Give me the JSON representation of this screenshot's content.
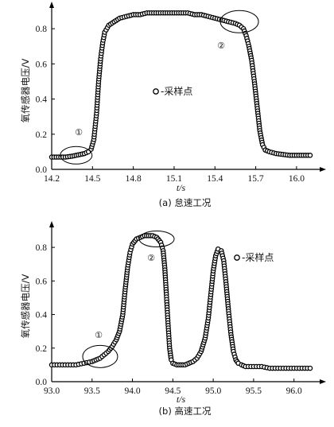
{
  "chart_data": [
    {
      "type": "scatter",
      "caption": "(a) 怠速工况",
      "xlabel": "t/s",
      "ylabel": "氧传感器电压/V",
      "xlim": [
        14.2,
        16.1
      ],
      "ylim": [
        0,
        0.9
      ],
      "xticks": [
        "14.2",
        "14.5",
        "14.8",
        "15.1",
        "15.4",
        "15.7",
        "16.0"
      ],
      "yticks": [
        "0.0",
        "0.2",
        "0.4",
        "0.6",
        "0.8"
      ],
      "legend_text": "-采样点",
      "legend_placement": "center",
      "annotations": [
        {
          "label": "①",
          "x": 14.38,
          "y": 0.08
        },
        {
          "label": "②",
          "x": 15.58,
          "y": 0.84
        }
      ],
      "series": [
        {
          "x": [
            14.2,
            14.25,
            14.3,
            14.35,
            14.38,
            14.41,
            14.44,
            14.47,
            14.49,
            14.51,
            14.53,
            14.545,
            14.56,
            14.575,
            14.59,
            14.62,
            14.66,
            14.7,
            14.75,
            14.8,
            14.85,
            14.9,
            14.95,
            15.0,
            15.05,
            15.1,
            15.15,
            15.2,
            15.25,
            15.3,
            15.35,
            15.4,
            15.45,
            15.5,
            15.55,
            15.58,
            15.61,
            15.63,
            15.65,
            15.67,
            15.69,
            15.71,
            15.73,
            15.75,
            15.77,
            15.8,
            15.85,
            15.9,
            15.95,
            16.0,
            16.05,
            16.1
          ],
          "y": [
            0.07,
            0.07,
            0.07,
            0.075,
            0.08,
            0.085,
            0.09,
            0.1,
            0.115,
            0.17,
            0.32,
            0.5,
            0.63,
            0.72,
            0.78,
            0.82,
            0.84,
            0.86,
            0.87,
            0.88,
            0.88,
            0.89,
            0.89,
            0.89,
            0.89,
            0.89,
            0.89,
            0.89,
            0.88,
            0.88,
            0.87,
            0.86,
            0.85,
            0.84,
            0.83,
            0.82,
            0.8,
            0.76,
            0.7,
            0.62,
            0.5,
            0.36,
            0.22,
            0.14,
            0.11,
            0.1,
            0.09,
            0.085,
            0.08,
            0.08,
            0.08,
            0.08
          ]
        }
      ]
    },
    {
      "type": "scatter",
      "caption": "(b) 高速工况",
      "xlabel": "t/s",
      "ylabel": "氧传感器电压/V",
      "xlim": [
        93.0,
        96.2
      ],
      "ylim": [
        0,
        0.9
      ],
      "xticks": [
        "93.0",
        "93.5",
        "94.0",
        "94.5",
        "95.0",
        "95.5",
        "96.0"
      ],
      "yticks": [
        "0.0",
        "0.2",
        "0.4",
        "0.6",
        "0.8"
      ],
      "legend_text": "-采样点",
      "legend_placement": "top-right",
      "annotations": [
        {
          "label": "①",
          "x": 93.6,
          "y": 0.15
        },
        {
          "label": "②",
          "x": 94.3,
          "y": 0.85
        }
      ],
      "series": [
        {
          "x": [
            93.0,
            93.1,
            93.2,
            93.3,
            93.4,
            93.5,
            93.55,
            93.6,
            93.65,
            93.7,
            93.75,
            93.8,
            93.84,
            93.88,
            93.91,
            93.94,
            93.97,
            94.0,
            94.05,
            94.1,
            94.15,
            94.2,
            94.25,
            94.3,
            94.35,
            94.38,
            94.4,
            94.42,
            94.44,
            94.46,
            94.48,
            94.5,
            94.55,
            94.6,
            94.65,
            94.7,
            94.75,
            94.8,
            94.85,
            94.9,
            94.94,
            94.97,
            95.0,
            95.03,
            95.06,
            95.1,
            95.13,
            95.16,
            95.19,
            95.22,
            95.25,
            95.28,
            95.31,
            95.35,
            95.4,
            95.5,
            95.6,
            95.7,
            95.8,
            95.9,
            96.0,
            96.1,
            96.2
          ],
          "y": [
            0.1,
            0.1,
            0.1,
            0.1,
            0.11,
            0.12,
            0.13,
            0.14,
            0.16,
            0.18,
            0.21,
            0.25,
            0.3,
            0.4,
            0.55,
            0.68,
            0.77,
            0.82,
            0.85,
            0.86,
            0.87,
            0.87,
            0.87,
            0.86,
            0.83,
            0.78,
            0.68,
            0.52,
            0.35,
            0.2,
            0.13,
            0.11,
            0.1,
            0.1,
            0.1,
            0.11,
            0.12,
            0.14,
            0.18,
            0.26,
            0.38,
            0.52,
            0.66,
            0.75,
            0.79,
            0.78,
            0.72,
            0.58,
            0.42,
            0.28,
            0.18,
            0.13,
            0.11,
            0.1,
            0.09,
            0.09,
            0.09,
            0.08,
            0.08,
            0.08,
            0.08,
            0.08,
            0.08
          ]
        }
      ]
    }
  ]
}
